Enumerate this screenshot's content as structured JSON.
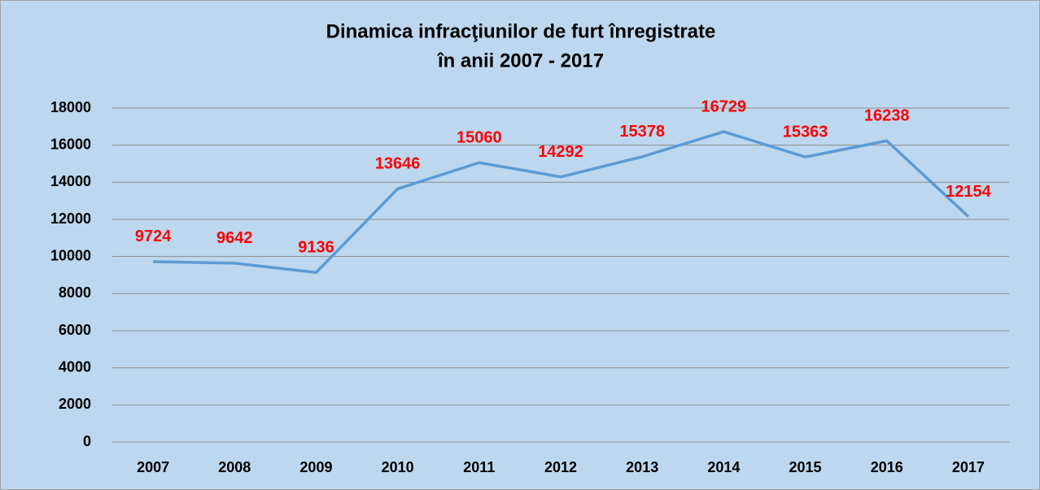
{
  "chart_data": {
    "type": "line",
    "title": [
      "Dinamica infracţiunilor de furt înregistrate",
      "în anii 2007 - 2017"
    ],
    "categories": [
      "2007",
      "2008",
      "2009",
      "2010",
      "2011",
      "2012",
      "2013",
      "2014",
      "2015",
      "2016",
      "2017"
    ],
    "values": [
      9724,
      9642,
      9136,
      13646,
      15060,
      14292,
      15378,
      16729,
      15363,
      16238,
      12154
    ],
    "color": "#5b9bd5",
    "label_color": "#ff0000",
    "ylim": [
      0,
      18000
    ],
    "yticks": [
      0,
      2000,
      4000,
      6000,
      8000,
      10000,
      12000,
      14000,
      16000,
      18000
    ],
    "grid": true
  }
}
